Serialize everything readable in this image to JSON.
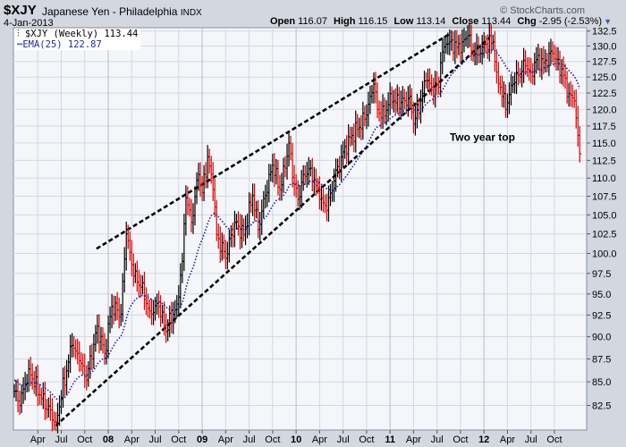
{
  "header": {
    "symbol": "$XJY",
    "name": "Japanese Yen - Philadelphia",
    "exchange": "INDX",
    "date": "4-Jan-2013",
    "copyright": "© StockCharts.com",
    "open_label": "Open",
    "open": "116.07",
    "high_label": "High",
    "high": "116.15",
    "low_label": "Low",
    "low": "113.14",
    "close_label": "Close",
    "close": "113.44",
    "chg_label": "Chg",
    "chg": "-2.95 (-2.53%)"
  },
  "legend": {
    "series": "$XJY (Weekly) 113.44",
    "ema": "EMA(25) 122.87"
  },
  "colors": {
    "up": "#000000",
    "down": "#dd0000",
    "ema": "#2020a0",
    "trend": "#000000",
    "grid": "#d4d8e2"
  },
  "chart_data": {
    "type": "ohlc",
    "scale": "log",
    "ylim": [
      81.5,
      133.0
    ],
    "yticks": [
      82.5,
      85.0,
      87.5,
      90.0,
      92.5,
      95.0,
      97.5,
      100.0,
      102.5,
      105.0,
      107.5,
      110.0,
      112.5,
      115.0,
      117.5,
      120.0,
      122.5,
      125.0,
      127.5,
      130.0,
      132.5
    ],
    "n_weeks": 314,
    "xticks": [
      {
        "week": 13,
        "label": "Apr",
        "major": false
      },
      {
        "week": 26,
        "label": "Jul",
        "major": false
      },
      {
        "week": 39,
        "label": "Oct",
        "major": false
      },
      {
        "week": 52,
        "label": "08",
        "major": true
      },
      {
        "week": 65,
        "label": "Apr",
        "major": false
      },
      {
        "week": 78,
        "label": "Jul",
        "major": false
      },
      {
        "week": 91,
        "label": "Oct",
        "major": false
      },
      {
        "week": 104,
        "label": "09",
        "major": true
      },
      {
        "week": 117,
        "label": "Apr",
        "major": false
      },
      {
        "week": 130,
        "label": "Jul",
        "major": false
      },
      {
        "week": 143,
        "label": "Oct",
        "major": false
      },
      {
        "week": 156,
        "label": "10",
        "major": true
      },
      {
        "week": 169,
        "label": "Apr",
        "major": false
      },
      {
        "week": 182,
        "label": "Jul",
        "major": false
      },
      {
        "week": 195,
        "label": "Oct",
        "major": false
      },
      {
        "week": 208,
        "label": "11",
        "major": true
      },
      {
        "week": 221,
        "label": "Apr",
        "major": false
      },
      {
        "week": 234,
        "label": "Jul",
        "major": false
      },
      {
        "week": 247,
        "label": "Oct",
        "major": false
      },
      {
        "week": 260,
        "label": "12",
        "major": true
      },
      {
        "week": 273,
        "label": "Apr",
        "major": false
      },
      {
        "week": 286,
        "label": "Jul",
        "major": false
      },
      {
        "week": 299,
        "label": "Oct",
        "major": false
      }
    ],
    "close_anchors": [
      [
        0,
        84
      ],
      [
        3,
        82.5
      ],
      [
        8,
        86.4
      ],
      [
        14,
        83.6
      ],
      [
        23,
        80.8
      ],
      [
        32,
        89
      ],
      [
        36,
        87.3
      ],
      [
        40,
        85.2
      ],
      [
        46,
        91.2
      ],
      [
        50,
        88.1
      ],
      [
        54,
        93.5
      ],
      [
        59,
        92.6
      ],
      [
        62,
        102.5
      ],
      [
        66,
        97.2
      ],
      [
        70,
        95.8
      ],
      [
        75,
        93
      ],
      [
        80,
        93.5
      ],
      [
        84,
        90.6
      ],
      [
        90,
        93.8
      ],
      [
        93,
        99
      ],
      [
        95,
        107.3
      ],
      [
        98,
        104
      ],
      [
        102,
        110.5
      ],
      [
        104,
        108
      ],
      [
        107,
        113
      ],
      [
        110,
        108.4
      ],
      [
        112,
        102.4
      ],
      [
        117,
        99.4
      ],
      [
        122,
        104
      ],
      [
        127,
        102.4
      ],
      [
        132,
        107.6
      ],
      [
        135,
        103.1
      ],
      [
        139,
        107.6
      ],
      [
        143,
        111.8
      ],
      [
        147,
        108.4
      ],
      [
        150,
        111.4
      ],
      [
        152,
        115
      ],
      [
        154,
        110.1
      ],
      [
        157,
        107.1
      ],
      [
        160,
        110.5
      ],
      [
        164,
        111.4
      ],
      [
        169,
        107.1
      ],
      [
        173,
        105.6
      ],
      [
        177,
        109.6
      ],
      [
        182,
        113.7
      ],
      [
        187,
        116.1
      ],
      [
        194,
        118.5
      ],
      [
        197,
        122
      ],
      [
        199,
        123.9
      ],
      [
        201,
        120
      ],
      [
        205,
        119
      ],
      [
        208,
        122.4
      ],
      [
        211,
        121
      ],
      [
        216,
        121.3
      ],
      [
        219,
        122
      ],
      [
        221,
        117.8
      ],
      [
        225,
        121.3
      ],
      [
        228,
        124.4
      ],
      [
        231,
        123.4
      ],
      [
        235,
        123.4
      ],
      [
        236,
        127.3
      ],
      [
        239,
        130.3
      ],
      [
        241,
        130.7
      ],
      [
        245,
        129.8
      ],
      [
        248,
        130.7
      ],
      [
        251,
        131.7
      ],
      [
        253,
        129.2
      ],
      [
        258,
        128.8
      ],
      [
        261,
        130.3
      ],
      [
        265,
        130.7
      ],
      [
        267,
        125.8
      ],
      [
        269,
        123.4
      ],
      [
        272,
        120
      ],
      [
        273,
        121
      ],
      [
        276,
        123.9
      ],
      [
        279,
        125.3
      ],
      [
        283,
        126.8
      ],
      [
        286,
        125.8
      ],
      [
        289,
        127.8
      ],
      [
        293,
        127.3
      ],
      [
        298,
        128.8
      ],
      [
        300,
        127.8
      ],
      [
        304,
        125.3
      ],
      [
        307,
        122.4
      ],
      [
        310,
        121.3
      ],
      [
        311,
        118.7
      ],
      [
        312,
        116.1
      ],
      [
        313,
        113.44
      ]
    ],
    "ema_period": 25,
    "trendlines": [
      {
        "name": "upper-channel",
        "from": [
          45.5,
          100.6
        ],
        "to": [
          242,
          132.2
        ]
      },
      {
        "name": "lower-channel",
        "from": [
          22.8,
          80.4
        ],
        "to": [
          263,
          131.4
        ]
      }
    ],
    "annotation": {
      "text": "Two year top",
      "week": 241,
      "value": 115.3
    }
  }
}
